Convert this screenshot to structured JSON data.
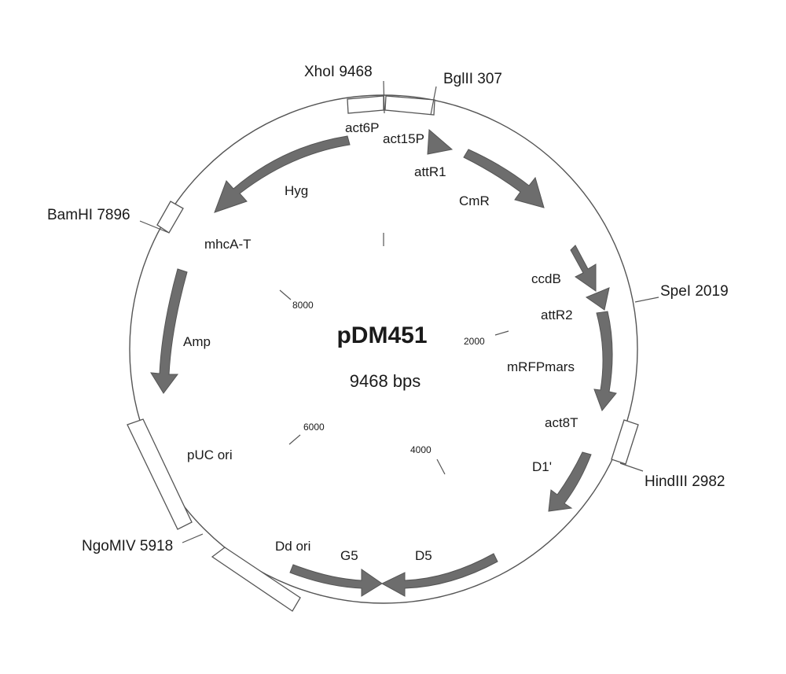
{
  "plasmid": {
    "name": "pDM451",
    "size_label": "9468 bps",
    "total_bp": 9468
  },
  "colors": {
    "arrow": "#6d6d6d",
    "line": "#555555",
    "text": "#1a1a1a"
  },
  "sites": [
    {
      "id": "xhoi",
      "label": "XhoI 9468"
    },
    {
      "id": "bglii",
      "label": "BglII 307"
    },
    {
      "id": "bamhi",
      "label": "BamHI 7896"
    },
    {
      "id": "spei",
      "label": "SpeI 2019"
    },
    {
      "id": "hindiii",
      "label": "HindIII 2982"
    },
    {
      "id": "ngomiv",
      "label": "NgoMIV 5918"
    }
  ],
  "ticks": [
    {
      "id": "t2000",
      "label": "2000"
    },
    {
      "id": "t4000",
      "label": "4000"
    },
    {
      "id": "t6000",
      "label": "6000"
    },
    {
      "id": "t8000",
      "label": "8000"
    }
  ],
  "features": [
    {
      "id": "act6p",
      "label": "act6P"
    },
    {
      "id": "act15p",
      "label": "act15P"
    },
    {
      "id": "attr1",
      "label": "attR1"
    },
    {
      "id": "hyg",
      "label": "Hyg"
    },
    {
      "id": "cmr",
      "label": "CmR"
    },
    {
      "id": "mhcat",
      "label": "mhcA-T"
    },
    {
      "id": "ccdb",
      "label": "ccdB"
    },
    {
      "id": "attr2",
      "label": "attR2"
    },
    {
      "id": "amp",
      "label": "Amp"
    },
    {
      "id": "mrfpmars",
      "label": "mRFPmars"
    },
    {
      "id": "act8t",
      "label": "act8T"
    },
    {
      "id": "d1p",
      "label": "D1'"
    },
    {
      "id": "puc",
      "label": "pUC ori"
    },
    {
      "id": "ddori",
      "label": "Dd ori"
    },
    {
      "id": "g5",
      "label": "G5"
    },
    {
      "id": "d5",
      "label": "D5"
    }
  ]
}
